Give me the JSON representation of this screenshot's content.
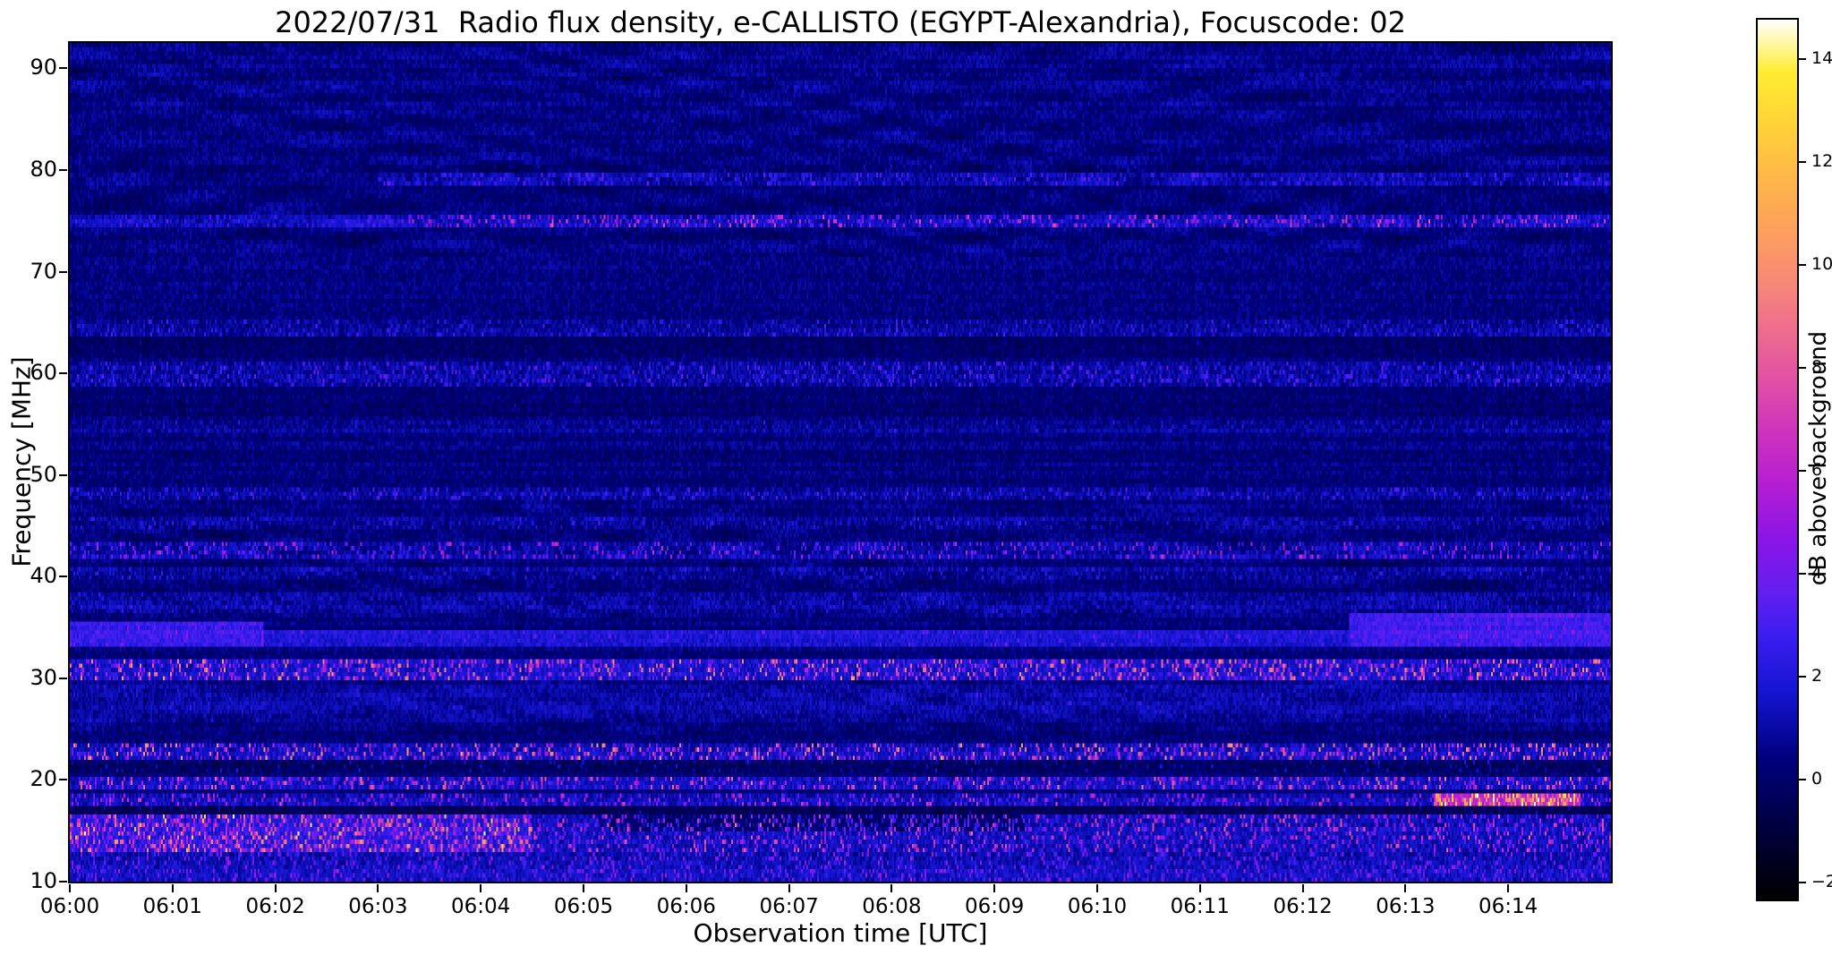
{
  "chart_data": {
    "type": "heatmap",
    "title": "2022/07/31  Radio flux density, e-CALLISTO (EGYPT-Alexandria), Focuscode: 02",
    "xlabel": "Observation time [UTC]",
    "ylabel": "Frequency [MHz]",
    "colorbar_label": "dB above background",
    "x_ticks": [
      "06:00",
      "06:01",
      "06:02",
      "06:03",
      "06:04",
      "06:05",
      "06:06",
      "06:07",
      "06:08",
      "06:09",
      "06:10",
      "06:11",
      "06:12",
      "06:13",
      "06:14"
    ],
    "x_range_minutes": [
      0,
      15
    ],
    "y_ticks": [
      10,
      20,
      30,
      40,
      50,
      60,
      70,
      80,
      90
    ],
    "y_range_mhz": [
      10,
      92.5
    ],
    "colorbar_ticks": [
      14,
      12,
      10,
      8,
      6,
      4,
      2,
      0,
      -2
    ],
    "color_range_db": [
      -2.3,
      14.8
    ],
    "background_level_db": 0.35,
    "noise_amplitude_db": 1.3,
    "colormap": {
      "name": "gnuplot2-like",
      "stops": [
        [
          0.0,
          "#000000"
        ],
        [
          0.09,
          "#000046"
        ],
        [
          0.16,
          "#00007e"
        ],
        [
          0.235,
          "#1414d2"
        ],
        [
          0.3,
          "#3c1ef0"
        ],
        [
          0.35,
          "#641ef0"
        ],
        [
          0.41,
          "#8c14e6"
        ],
        [
          0.47,
          "#b41ed2"
        ],
        [
          0.53,
          "#cd32be"
        ],
        [
          0.59,
          "#e150a5"
        ],
        [
          0.65,
          "#ee6e8c"
        ],
        [
          0.7,
          "#f68878"
        ],
        [
          0.76,
          "#fca05c"
        ],
        [
          0.82,
          "#ffb648"
        ],
        [
          0.88,
          "#ffd238"
        ],
        [
          0.94,
          "#ffec30"
        ],
        [
          1.0,
          "#ffffff"
        ]
      ]
    },
    "interference_wave_regions": [
      {
        "freq_mhz": [
          71.5,
          92.5
        ],
        "amplitude_db": 0.55
      },
      {
        "freq_mhz": [
          36.0,
          47.5
        ],
        "amplitude_db": 0.5
      },
      {
        "freq_mhz": [
          24.5,
          30.0
        ],
        "amplitude_db": 0.45
      }
    ],
    "rfi_bands": [
      {
        "freq_mhz": [
          79.8,
          92.5
        ],
        "time_frac": [
          0,
          1
        ],
        "base_db": 0.15,
        "speckle_prob": 0.08,
        "speckle_db": 0.5,
        "desc": "bluish wavy upper region"
      },
      {
        "freq_mhz": [
          79.7,
          80.5
        ],
        "time_frac": [
          0,
          1
        ],
        "base_db": -0.45,
        "speckle_prob": 0.15,
        "speckle_db": 1,
        "desc": "dark line near 80 MHz"
      },
      {
        "freq_mhz": [
          78.5,
          79.6
        ],
        "time_frac": [
          0.2,
          1
        ],
        "base_db": 0.55,
        "speckle_prob": 0.45,
        "speckle_db": 2.6,
        "desc": "speckled line ~79 MHz"
      },
      {
        "freq_mhz": [
          74.2,
          75.6
        ],
        "time_frac": [
          0,
          0.22
        ],
        "base_db": 0.9,
        "speckle_prob": 0.3,
        "speckle_db": 2,
        "desc": "continuous dark-red line ~74.8 MHz at start"
      },
      {
        "freq_mhz": [
          74.2,
          75.6
        ],
        "time_frac": [
          0.22,
          1
        ],
        "base_db": 0.8,
        "speckle_prob": 0.55,
        "speckle_db": 6.5,
        "desc": "colorful speckled RFI ~74.8 MHz"
      },
      {
        "freq_mhz": [
          63.8,
          65.2
        ],
        "time_frac": [
          0,
          1
        ],
        "base_db": 0.4,
        "speckle_prob": 0.4,
        "speckle_db": 2.2,
        "desc": "faint speckle ~64.5 MHz"
      },
      {
        "freq_mhz": [
          58.8,
          61.2
        ],
        "time_frac": [
          0,
          1
        ],
        "base_db": 0.45,
        "speckle_prob": 0.5,
        "speckle_db": 2.8,
        "desc": "speckled band 59-61 MHz"
      },
      {
        "freq_mhz": [
          61.4,
          63.6
        ],
        "time_frac": [
          0,
          1
        ],
        "base_db": -0.3,
        "speckle_prob": 0.1,
        "speckle_db": 0.6,
        "desc": "dark lane 61-63 MHz"
      },
      {
        "freq_mhz": [
          55.6,
          58.6
        ],
        "time_frac": [
          0,
          1
        ],
        "base_db": -0.25,
        "speckle_prob": 0.1,
        "speckle_db": 0.6,
        "desc": "dark lane 56-58 MHz"
      },
      {
        "freq_mhz": [
          54.2,
          55.3
        ],
        "time_frac": [
          0,
          1
        ],
        "base_db": 0.3,
        "speckle_prob": 0.3,
        "speckle_db": 1.5,
        "desc": "faint line ~54.7 MHz"
      },
      {
        "freq_mhz": [
          47.6,
          48.7
        ],
        "time_frac": [
          0,
          1
        ],
        "base_db": 0.5,
        "speckle_prob": 0.5,
        "speckle_db": 2.5,
        "desc": "speckled line ~48 MHz"
      },
      {
        "freq_mhz": [
          44.6,
          45.7
        ],
        "time_frac": [
          0,
          1
        ],
        "base_db": 0.3,
        "speckle_prob": 0.35,
        "speckle_db": 1.8,
        "desc": "faint line ~45 MHz"
      },
      {
        "freq_mhz": [
          41.9,
          43.4
        ],
        "time_frac": [
          0,
          1
        ],
        "base_db": 0.6,
        "speckle_prob": 0.45,
        "speckle_db": 5.5,
        "desc": "speckles with pink bursts 42-43 MHz"
      },
      {
        "freq_mhz": [
          39.8,
          40.9
        ],
        "time_frac": [
          0,
          1
        ],
        "base_db": 0.4,
        "speckle_prob": 0.35,
        "speckle_db": 2,
        "desc": "faint line ~40.4 MHz"
      },
      {
        "freq_mhz": [
          36.5,
          38.6
        ],
        "time_frac": [
          0,
          1
        ],
        "base_db": 0.5,
        "speckle_prob": 0.25,
        "speckle_db": 1.5,
        "desc": "wavy blue band 37-38.5 MHz"
      },
      {
        "freq_mhz": [
          33.0,
          35.6
        ],
        "time_frac": [
          0,
          0.125
        ],
        "base_db": 2.3,
        "speckle_prob": 0.2,
        "speckle_db": 2,
        "desc": "bright blue block 06:00-06:02"
      },
      {
        "freq_mhz": [
          33.2,
          34.7
        ],
        "time_frac": [
          0.125,
          0.83
        ],
        "base_db": 1.5,
        "speckle_prob": 0.15,
        "speckle_db": 2,
        "desc": "blue band mid interval"
      },
      {
        "freq_mhz": [
          33.0,
          36.3
        ],
        "time_frac": [
          0.83,
          1
        ],
        "base_db": 2.5,
        "speckle_prob": 0.2,
        "speckle_db": 2,
        "desc": "bright blue block 06:12.5-06:15"
      },
      {
        "freq_mhz": [
          30.0,
          31.9
        ],
        "time_frac": [
          0,
          1
        ],
        "base_db": 1.2,
        "speckle_prob": 0.55,
        "speckle_db": 9,
        "desc": "strong speckled RFI 30-32 MHz with orange bursts"
      },
      {
        "freq_mhz": [
          25.5,
          29.5
        ],
        "time_frac": [
          0,
          1
        ],
        "base_db": 0.55,
        "speckle_prob": 0.15,
        "speckle_db": 1.2,
        "desc": "wavy region 25-29 MHz"
      },
      {
        "freq_mhz": [
          22.0,
          23.7
        ],
        "time_frac": [
          0,
          1
        ],
        "base_db": 0.9,
        "speckle_prob": 0.5,
        "speckle_db": 9.5,
        "desc": "speckle line 22-23.5 MHz with yellow dots"
      },
      {
        "freq_mhz": [
          20.6,
          21.9
        ],
        "time_frac": [
          0,
          1
        ],
        "base_db": -0.6,
        "speckle_prob": 0.25,
        "speckle_db": 2,
        "desc": "dark lane ~21 MHz"
      },
      {
        "freq_mhz": [
          18.9,
          20.5
        ],
        "time_frac": [
          0,
          1
        ],
        "base_db": 0.9,
        "speckle_prob": 0.5,
        "speckle_db": 8,
        "desc": "speckle band 19-20.5 MHz"
      },
      {
        "freq_mhz": [
          17.4,
          18.5
        ],
        "time_frac": [
          0,
          1
        ],
        "base_db": 0.8,
        "speckle_prob": 0.45,
        "speckle_db": 6,
        "desc": "speckle line ~18 MHz"
      },
      {
        "freq_mhz": [
          17.4,
          18.5
        ],
        "time_frac": [
          0.885,
          0.98
        ],
        "base_db": 4.5,
        "speckle_prob": 0.8,
        "speckle_db": 9,
        "desc": "bright orange-yellow streak ~18 MHz near 06:13.3-06:14.7"
      },
      {
        "freq_mhz": [
          16.5,
          17.3
        ],
        "time_frac": [
          0,
          1
        ],
        "base_db": -0.7,
        "speckle_prob": 0.2,
        "speckle_db": 1.5,
        "desc": "dark lane ~17 MHz"
      },
      {
        "freq_mhz": [
          12.9,
          16.4
        ],
        "time_frac": [
          0,
          1
        ],
        "base_db": 1.0,
        "speckle_prob": 0.5,
        "speckle_db": 7,
        "desc": "active speckled HF band 13-16.5 MHz"
      },
      {
        "freq_mhz": [
          12.9,
          16.4
        ],
        "time_frac": [
          0,
          0.3
        ],
        "base_db": 0.7,
        "speckle_prob": 0.5,
        "speckle_db": 8,
        "desc": "enhanced activity 06:00-06:04.5"
      },
      {
        "freq_mhz": [
          14.8,
          16.4
        ],
        "time_frac": [
          0.35,
          0.62
        ],
        "base_db": -1.2,
        "speckle_prob": 0.35,
        "speckle_db": 4,
        "desc": "dark patch 15-16.5 MHz mid interval"
      },
      {
        "freq_mhz": [
          10.0,
          12.8
        ],
        "time_frac": [
          0,
          1
        ],
        "base_db": 0.9,
        "speckle_prob": 0.45,
        "speckle_db": 4,
        "desc": "blue speckle band 10-13 MHz"
      }
    ]
  }
}
